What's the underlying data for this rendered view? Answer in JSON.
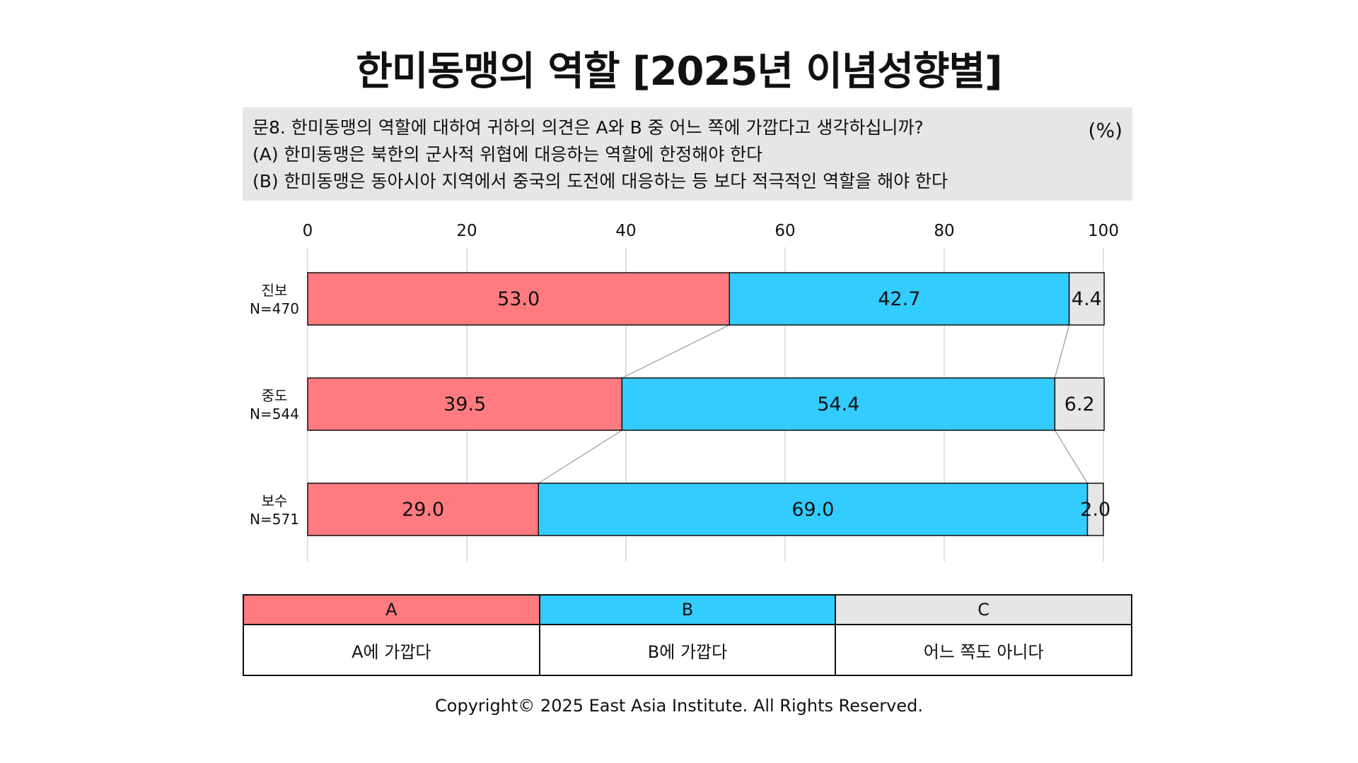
{
  "title": "한미동맹의 역할 [2025년 이념성향별]",
  "question": {
    "lines": [
      "문8. 한미동맹의 역할에 대하여 귀하의 의견은 A와 B 중 어느 쪽에 가깝다고 생각하십니까?",
      "(A) 한미동맹은 북한의 군사적 위협에 대응하는 역할에 한정해야 한다",
      "(B) 한미동맹은 동아시아 지역에서 중국의 도전에 대응하는 등 보다 적극적인 역할을 해야 한다"
    ],
    "unit": "(%)"
  },
  "colors": {
    "A": "#ff7b80",
    "B": "#33ccff",
    "C": "#e6e6e6"
  },
  "chart_data": {
    "type": "bar",
    "orientation": "horizontal",
    "stacked": true,
    "xlim": [
      0,
      100
    ],
    "xticks": [
      0,
      20,
      40,
      60,
      80,
      100
    ],
    "grid": true,
    "categories": [
      {
        "name": "진보",
        "n": "N=470"
      },
      {
        "name": "중도",
        "n": "N=544"
      },
      {
        "name": "보수",
        "n": "N=571"
      }
    ],
    "series": [
      {
        "key": "A",
        "values": [
          53.0,
          39.5,
          29.0
        ],
        "labels": [
          "53.0",
          "39.5",
          "29.0"
        ]
      },
      {
        "key": "B",
        "values": [
          42.7,
          54.4,
          69.0
        ],
        "labels": [
          "42.7",
          "54.4",
          "69.0"
        ]
      },
      {
        "key": "C",
        "values": [
          4.4,
          6.2,
          2.0
        ],
        "labels": [
          "4.4",
          "6.2",
          "2.0"
        ]
      }
    ]
  },
  "legend": [
    {
      "key": "A",
      "label": "A",
      "desc": "A에 가깝다"
    },
    {
      "key": "B",
      "label": "B",
      "desc": "B에 가깝다"
    },
    {
      "key": "C",
      "label": "C",
      "desc": "어느 쪽도 아니다"
    }
  ],
  "copyright": "Copyright© 2025 East Asia Institute. All Rights Reserved."
}
